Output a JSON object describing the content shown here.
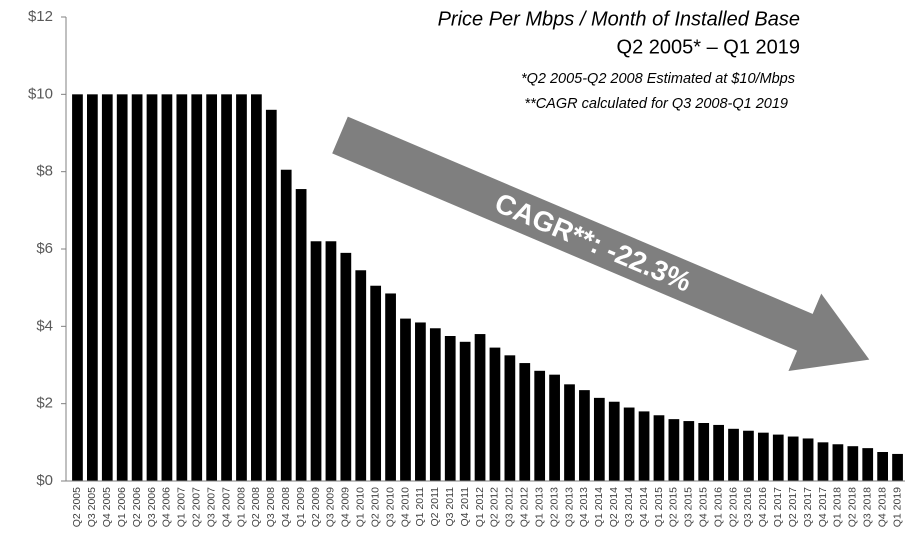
{
  "chart_data": {
    "type": "bar",
    "title": "Price Per Mbps / Month of Installed Base",
    "subtitle": "Q2 2005* – Q1 2019",
    "annotations": [
      "*Q2 2005-Q2 2008 Estimated at $10/Mbps",
      "**CAGR calculated for Q3 2008-Q1 2019",
      "CAGR**: -22.3%"
    ],
    "categories": [
      "Q2 2005",
      "Q3 2005",
      "Q4 2005",
      "Q1 2006",
      "Q2 2006",
      "Q3 2006",
      "Q4 2006",
      "Q1 2007",
      "Q2 2007",
      "Q3 2007",
      "Q4 2007",
      "Q1 2008",
      "Q2 2008",
      "Q3 2008",
      "Q4 2008",
      "Q1 2009",
      "Q2 2009",
      "Q3 2009",
      "Q4 2009",
      "Q1 2010",
      "Q2 2010",
      "Q3 2010",
      "Q4 2010",
      "Q1 2011",
      "Q2 2011",
      "Q3 2011",
      "Q4 2011",
      "Q1 2012",
      "Q2 2012",
      "Q3 2012",
      "Q4 2012",
      "Q1 2013",
      "Q2 2013",
      "Q3 2013",
      "Q4 2013",
      "Q1 2014",
      "Q2 2014",
      "Q3 2014",
      "Q4 2014",
      "Q1 2015",
      "Q2 2015",
      "Q3 2015",
      "Q4 2015",
      "Q1 2016",
      "Q2 2016",
      "Q3 2016",
      "Q4 2016",
      "Q1 2017",
      "Q2 2017",
      "Q3 2017",
      "Q4 2017",
      "Q1 2018",
      "Q2 2018",
      "Q3 2018",
      "Q4 2018",
      "Q1 2019"
    ],
    "values": [
      10,
      10,
      10,
      10,
      10,
      10,
      10,
      10,
      10,
      10,
      10,
      10,
      10,
      9.6,
      8.05,
      7.55,
      6.2,
      6.2,
      5.9,
      5.45,
      5.05,
      4.85,
      4.2,
      4.1,
      3.95,
      3.75,
      3.6,
      3.8,
      3.45,
      3.25,
      3.05,
      2.85,
      2.75,
      2.5,
      2.35,
      2.15,
      2.05,
      1.9,
      1.8,
      1.7,
      1.6,
      1.55,
      1.5,
      1.45,
      1.35,
      1.3,
      1.25,
      1.2,
      1.15,
      1.1,
      1.0,
      0.95,
      0.9,
      0.85,
      0.75,
      0.7
    ],
    "color": "#000000",
    "ylim": [
      0,
      12
    ],
    "yticks": [
      {
        "value": 0,
        "label": "$0"
      },
      {
        "value": 2,
        "label": "$2"
      },
      {
        "value": 4,
        "label": "$4"
      },
      {
        "value": 6,
        "label": "$6"
      },
      {
        "value": 8,
        "label": "$8"
      },
      {
        "value": 10,
        "label": "$10"
      },
      {
        "value": 12,
        "label": "$12"
      }
    ],
    "grid": false
  }
}
